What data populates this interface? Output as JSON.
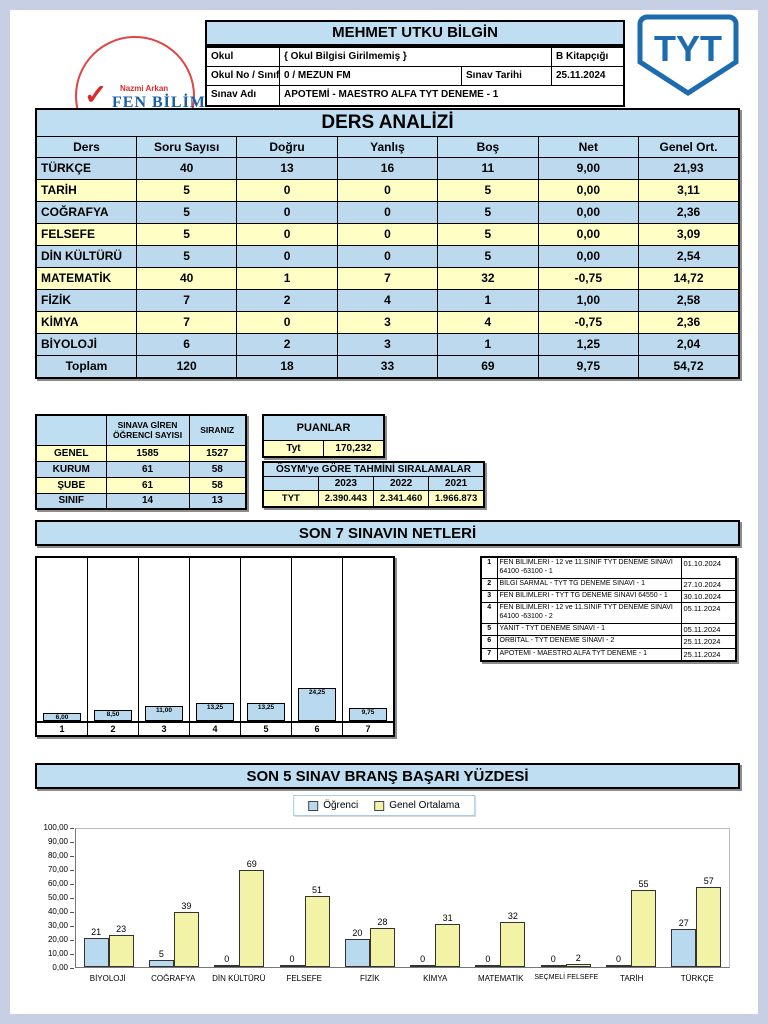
{
  "report": {
    "student_name": "MEHMET UTKU BİLGİN",
    "brand": {
      "top": "Nazmi Arkan",
      "bottom": "FEN BİLİMLERİ",
      "badge": "TYT",
      "check": "✓"
    },
    "info": {
      "okul_label": "Okul",
      "okul_value": "{ Okul Bilgisi Girilmemiş }",
      "kitapcik": "B Kitapçığı",
      "okulno_label": "Okul No / Sınıf",
      "okulno_value": "0 / MEZUN FM",
      "tarih_label": "Sınav Tarihi",
      "tarih_value": "25.11.2024",
      "sinav_label": "Sınav Adı",
      "sinav_value": "APOTEMİ - MAESTRO ALFA TYT DENEME - 1"
    }
  },
  "ders_analizi": {
    "title": "DERS ANALİZİ",
    "columns": [
      "Ders",
      "Soru Sayısı",
      "Doğru",
      "Yanlış",
      "Boş",
      "Net",
      "Genel Ort."
    ],
    "rows": [
      [
        "TÜRKÇE",
        "40",
        "13",
        "16",
        "11",
        "9,00",
        "21,93"
      ],
      [
        "TARİH",
        "5",
        "0",
        "0",
        "5",
        "0,00",
        "3,11"
      ],
      [
        "COĞRAFYA",
        "5",
        "0",
        "0",
        "5",
        "0,00",
        "2,36"
      ],
      [
        "FELSEFE",
        "5",
        "0",
        "0",
        "5",
        "0,00",
        "3,09"
      ],
      [
        "DİN KÜLTÜRÜ",
        "5",
        "0",
        "0",
        "5",
        "0,00",
        "2,54"
      ],
      [
        "MATEMATİK",
        "40",
        "1",
        "7",
        "32",
        "-0,75",
        "14,72"
      ],
      [
        "FİZİK",
        "7",
        "2",
        "4",
        "1",
        "1,00",
        "2,58"
      ],
      [
        "KİMYA",
        "7",
        "0",
        "3",
        "4",
        "-0,75",
        "2,36"
      ],
      [
        "BİYOLOJİ",
        "6",
        "2",
        "3",
        "1",
        "1,25",
        "2,04"
      ]
    ],
    "toplam": [
      "Toplam",
      "120",
      "18",
      "33",
      "69",
      "9,75",
      "54,72"
    ]
  },
  "katilim": {
    "header_blank": "",
    "header_sayi": "SINAVA GİREN ÖĞRENCİ SAYISI",
    "header_sira": "SIRANIZ",
    "rows": [
      [
        "GENEL",
        "1585",
        "1527"
      ],
      [
        "KURUM",
        "61",
        "58"
      ],
      [
        "ŞUBE",
        "61",
        "58"
      ],
      [
        "SINIF",
        "14",
        "13"
      ]
    ]
  },
  "puanlar": {
    "title": "PUANLAR",
    "score_label": "Tyt",
    "score_value": "170,232"
  },
  "osym": {
    "title": "ÖSYM'ye GÖRE TAHMİNİ SIRALAMALAR",
    "years": [
      "2023",
      "2022",
      "2021"
    ],
    "row_label": "TYT",
    "values": [
      "2.390.443",
      "2.341.460",
      "1.966.873"
    ]
  },
  "son7": {
    "title": "SON 7 SINAVIN NETLERİ",
    "exams": [
      {
        "no": "1",
        "name": "FEN BİLİMLERİ - 12 ve 11.SINIF TYT DENEME SINAVI 64100 -63100 - 1",
        "date": "01.10.2024"
      },
      {
        "no": "2",
        "name": "BİLGİ SARMAL - TYT TG DENEME SINAVI - 1",
        "date": "27.10.2024"
      },
      {
        "no": "3",
        "name": "FEN BİLİMLERİ - TYT TG DENEME SINAVI 64550 - 1",
        "date": "30.10.2024"
      },
      {
        "no": "4",
        "name": "FEN BİLİMLERİ - 12 ve 11.SINIF TYT DENEME SINAVI 64100 -63100 - 2",
        "date": "05.11.2024"
      },
      {
        "no": "5",
        "name": "YANIT - TYT DENEME SINAVI - 1",
        "date": "05.11.2024"
      },
      {
        "no": "6",
        "name": "ORBİTAL - TYT DENEME SINAVI - 2",
        "date": "25.11.2024"
      },
      {
        "no": "7",
        "name": "APOTEMİ - MAESTRO ALFA TYT DENEME - 1",
        "date": "25.11.2024"
      }
    ]
  },
  "son5": {
    "title": "SON 5 SINAV BRANŞ BAŞARI YÜZDESİ",
    "legend": [
      "Öğrenci",
      "Genel Ortalama"
    ]
  },
  "chart_data": [
    {
      "type": "bar",
      "name": "son7-netler",
      "title": "SON 7 SINAVIN NETLERİ",
      "categories": [
        "1",
        "2",
        "3",
        "4",
        "5",
        "6",
        "7"
      ],
      "values": [
        6.0,
        8.5,
        11.0,
        13.25,
        13.25,
        24.25,
        9.75
      ],
      "value_labels": [
        "6,00",
        "8,50",
        "11,00",
        "13,25",
        "13,25",
        "24,25",
        "9,75"
      ],
      "xlabel": "",
      "ylabel": "",
      "ylim": [
        0,
        120
      ],
      "grid": false
    },
    {
      "type": "bar",
      "name": "son5-brans-basari-yuzdesi",
      "title": "SON 5 SINAV BRANŞ BAŞARI YÜZDESİ",
      "categories": [
        "BİYOLOJİ",
        "COĞRAFYA",
        "DİN KÜLTÜRÜ",
        "FELSEFE",
        "FİZİK",
        "KİMYA",
        "MATEMATİK",
        "SEÇMELİ FELSEFE",
        "TARİH",
        "TÜRKÇE"
      ],
      "series": [
        {
          "name": "Öğrenci",
          "values": [
            21,
            5,
            0,
            0,
            20,
            0,
            0,
            0,
            0,
            27
          ]
        },
        {
          "name": "Genel Ortalama",
          "values": [
            23,
            39,
            69,
            51,
            28,
            31,
            32,
            2,
            55,
            57
          ]
        }
      ],
      "ytick_labels": [
        "0,00",
        "10,00",
        "20,00",
        "30,00",
        "40,00",
        "50,00",
        "60,00",
        "70,00",
        "80,00",
        "90,00",
        "100,00"
      ],
      "xlabel": "",
      "ylabel": "",
      "ylim": [
        0,
        100
      ],
      "grid": false,
      "legend_position": "top"
    }
  ],
  "colors": {
    "frame": "#c6cfe3",
    "panel_blue": "#bfdef2",
    "row_blue": "#bdd9ee",
    "row_yellow": "#ffffc5",
    "bar_student": "#b9daee",
    "bar_average": "#f3f3a8",
    "tyt_blue": "#1e6cb0",
    "logo_red": "#d92b2b"
  }
}
